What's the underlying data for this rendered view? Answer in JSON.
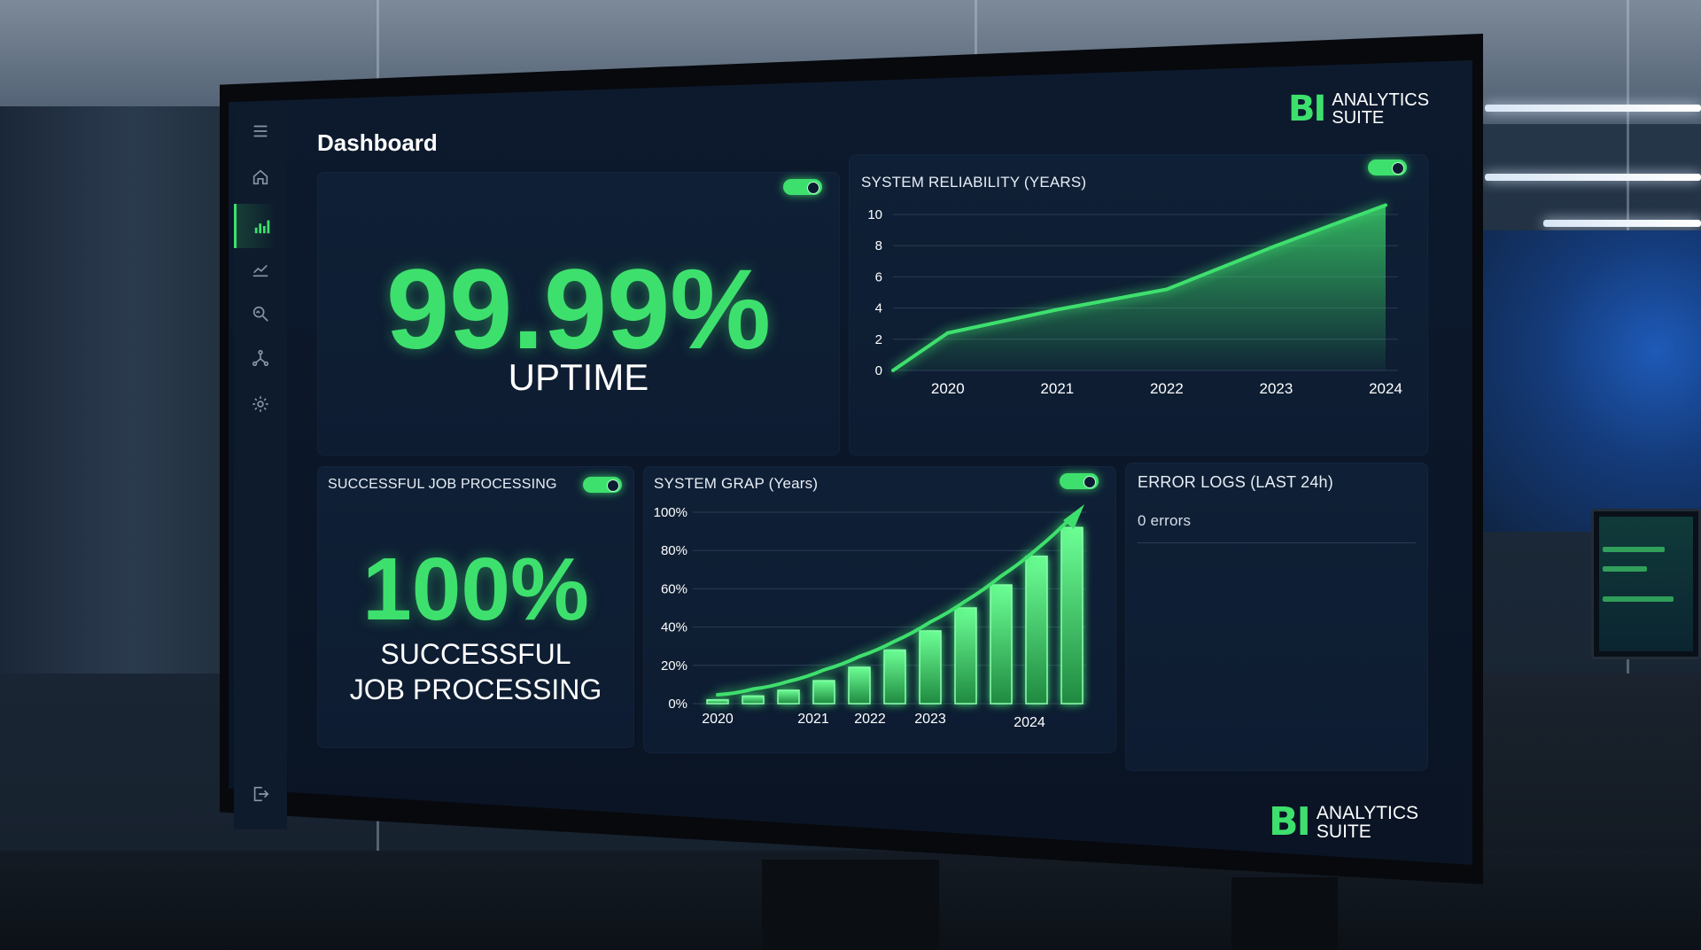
{
  "page": {
    "title": "Dashboard"
  },
  "brand": {
    "mark": "BI",
    "line1": "ANALYTICS",
    "line2": "SUITE"
  },
  "sidebar": {
    "items": [
      {
        "name": "menu-icon"
      },
      {
        "name": "home-icon"
      },
      {
        "name": "bar-chart-icon",
        "active": true
      },
      {
        "name": "trend-chart-icon"
      },
      {
        "name": "search-analytics-icon"
      },
      {
        "name": "network-icon"
      },
      {
        "name": "settings-icon"
      },
      {
        "name": "logout-icon"
      }
    ]
  },
  "uptime": {
    "value": "99.99%",
    "label": "UPTIME",
    "toggle_on": true
  },
  "jobs": {
    "title": "SUCCESSFUL JOB PROCESSING",
    "value": "100%",
    "label_line1": "SUCCESSFUL",
    "label_line2": "JOB PROCESSING",
    "toggle_on": true
  },
  "errors": {
    "title": "ERROR LOGS (LAST 24h)",
    "entry": "0 errors"
  },
  "colors": {
    "accent": "#3ee06d",
    "panel": "#0f2036",
    "background": "#0b1628"
  },
  "chart_data": [
    {
      "type": "area",
      "title": "SYSTEM RELIABILITY (YEARS)",
      "x_ticks": [
        "2020",
        "2021",
        "2022",
        "2023",
        "2024"
      ],
      "y_ticks": [
        "0",
        "2",
        "4",
        "6",
        "8",
        "10"
      ],
      "ylim": [
        0,
        10
      ],
      "grid": true,
      "toggle_on": true,
      "points": [
        {
          "x": 2019.5,
          "y": 0
        },
        {
          "x": 2020,
          "y": 2.4
        },
        {
          "x": 2021,
          "y": 3.9
        },
        {
          "x": 2022,
          "y": 5.2
        },
        {
          "x": 2023,
          "y": 8.0
        },
        {
          "x": 2024,
          "y": 10.6
        }
      ]
    },
    {
      "type": "bar",
      "title": "SYSTEM GRAP (Years)",
      "x_ticks": [
        "2020",
        "2021",
        "2022",
        "2023",
        "2024"
      ],
      "y_ticks": [
        "0%",
        "20%",
        "40%",
        "60%",
        "80%",
        "100%"
      ],
      "ylim": [
        0,
        100
      ],
      "grid": true,
      "toggle_on": true,
      "values": [
        2,
        4,
        7,
        12,
        19,
        28,
        38,
        50,
        62,
        77,
        92
      ],
      "trend": [
        0,
        3,
        7,
        13,
        20,
        28,
        38,
        49,
        62,
        76,
        93
      ]
    }
  ]
}
